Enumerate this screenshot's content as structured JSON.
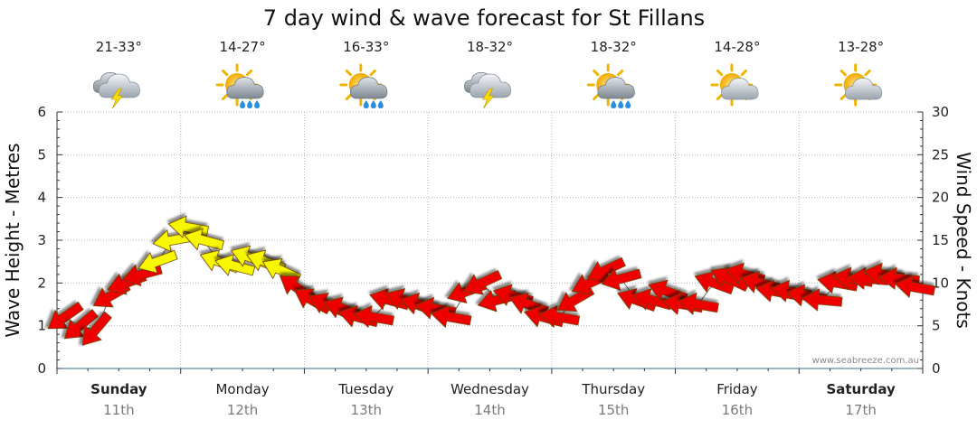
{
  "chart_data": {
    "type": "line",
    "title": "7 day wind & wave forecast for St Fillans",
    "ylabel_left": "Wave Height - Metres",
    "ylabel_right": "Wind Speed - Knots",
    "ylim_left": [
      0,
      6
    ],
    "ylim_right": [
      0,
      30
    ],
    "yticks_left": [
      "0",
      "1",
      "2",
      "3",
      "4",
      "5",
      "6"
    ],
    "yticks_right": [
      "0",
      "5",
      "10",
      "15",
      "20",
      "25",
      "30"
    ],
    "grid": true,
    "days": [
      {
        "day": "Sunday",
        "date": "11th",
        "bold": true,
        "temp": "21-33°",
        "icon": "storm-cloud-icon"
      },
      {
        "day": "Monday",
        "date": "12th",
        "bold": false,
        "temp": "14-27°",
        "icon": "sun-rain-cloud-icon"
      },
      {
        "day": "Tuesday",
        "date": "13th",
        "bold": false,
        "temp": "16-33°",
        "icon": "sun-rain-cloud-icon"
      },
      {
        "day": "Wednesday",
        "date": "14th",
        "bold": false,
        "temp": "18-32°",
        "icon": "storm-cloud-icon"
      },
      {
        "day": "Thursday",
        "date": "15th",
        "bold": false,
        "temp": "18-32°",
        "icon": "sun-rain-cloud-icon"
      },
      {
        "day": "Friday",
        "date": "16th",
        "bold": false,
        "temp": "14-28°",
        "icon": "sun-cloud-icon"
      },
      {
        "day": "Saturday",
        "date": "17th",
        "bold": true,
        "temp": "13-28°",
        "icon": "sun-cloud-icon"
      }
    ],
    "series": [
      {
        "name": "Wind Speed",
        "axis": "right",
        "x": [
          0,
          0.125,
          0.25,
          0.375,
          0.5,
          0.625,
          0.75,
          0.875,
          1,
          1.125,
          1.25,
          1.375,
          1.5,
          1.625,
          1.75,
          1.875,
          2,
          2.125,
          2.25,
          2.375,
          2.5,
          2.625,
          2.75,
          2.875,
          3,
          3.125,
          3.25,
          3.375,
          3.5,
          3.625,
          3.75,
          3.875,
          4,
          4.125,
          4.25,
          4.375,
          4.5,
          4.625,
          4.75,
          4.875,
          5,
          5.125,
          5.25,
          5.375,
          5.5,
          5.625,
          5.75,
          5.875,
          6,
          6.125,
          6.25,
          6.375,
          6.5,
          6.625,
          6.75,
          6.875
        ],
        "values": [
          6,
          5,
          4.5,
          8.5,
          10,
          11,
          12.5,
          15,
          16.5,
          15,
          12.5,
          12,
          13,
          12.5,
          11.5,
          9.5,
          8,
          7.5,
          7,
          6,
          6,
          8,
          8,
          7.5,
          7,
          6,
          9,
          10,
          8,
          8.5,
          7.5,
          6,
          6,
          8,
          10,
          11.5,
          10.5,
          8,
          8,
          9,
          7.5,
          7.5,
          10,
          10.5,
          11,
          10,
          9,
          9,
          8.5,
          8,
          10,
          10.5,
          10.5,
          11,
          10.5,
          9.5
        ],
        "directions": [
          -35,
          -40,
          -50,
          -30,
          -20,
          -15,
          -20,
          -10,
          10,
          15,
          20,
          15,
          20,
          20,
          25,
          35,
          30,
          25,
          20,
          15,
          10,
          15,
          20,
          15,
          10,
          10,
          -20,
          -25,
          -15,
          15,
          20,
          15,
          10,
          -30,
          -25,
          -25,
          -15,
          20,
          15,
          20,
          10,
          10,
          20,
          25,
          15,
          15,
          10,
          10,
          10,
          5,
          10,
          10,
          5,
          10,
          5,
          10
        ],
        "colors": [
          "red",
          "red",
          "red",
          "red",
          "red",
          "red",
          "yellow",
          "yellow",
          "yellow",
          "yellow",
          "yellow",
          "yellow",
          "yellow",
          "yellow",
          "yellow",
          "red",
          "red",
          "red",
          "red",
          "red",
          "red",
          "red",
          "red",
          "red",
          "red",
          "red",
          "red",
          "red",
          "red",
          "red",
          "red",
          "red",
          "red",
          "red",
          "red",
          "red",
          "red",
          "red",
          "red",
          "red",
          "red",
          "red",
          "red",
          "red",
          "red",
          "red",
          "red",
          "red",
          "red",
          "red",
          "red",
          "red",
          "red",
          "red",
          "red",
          "red"
        ]
      }
    ],
    "credit": "www.seabreeze.com.au"
  }
}
